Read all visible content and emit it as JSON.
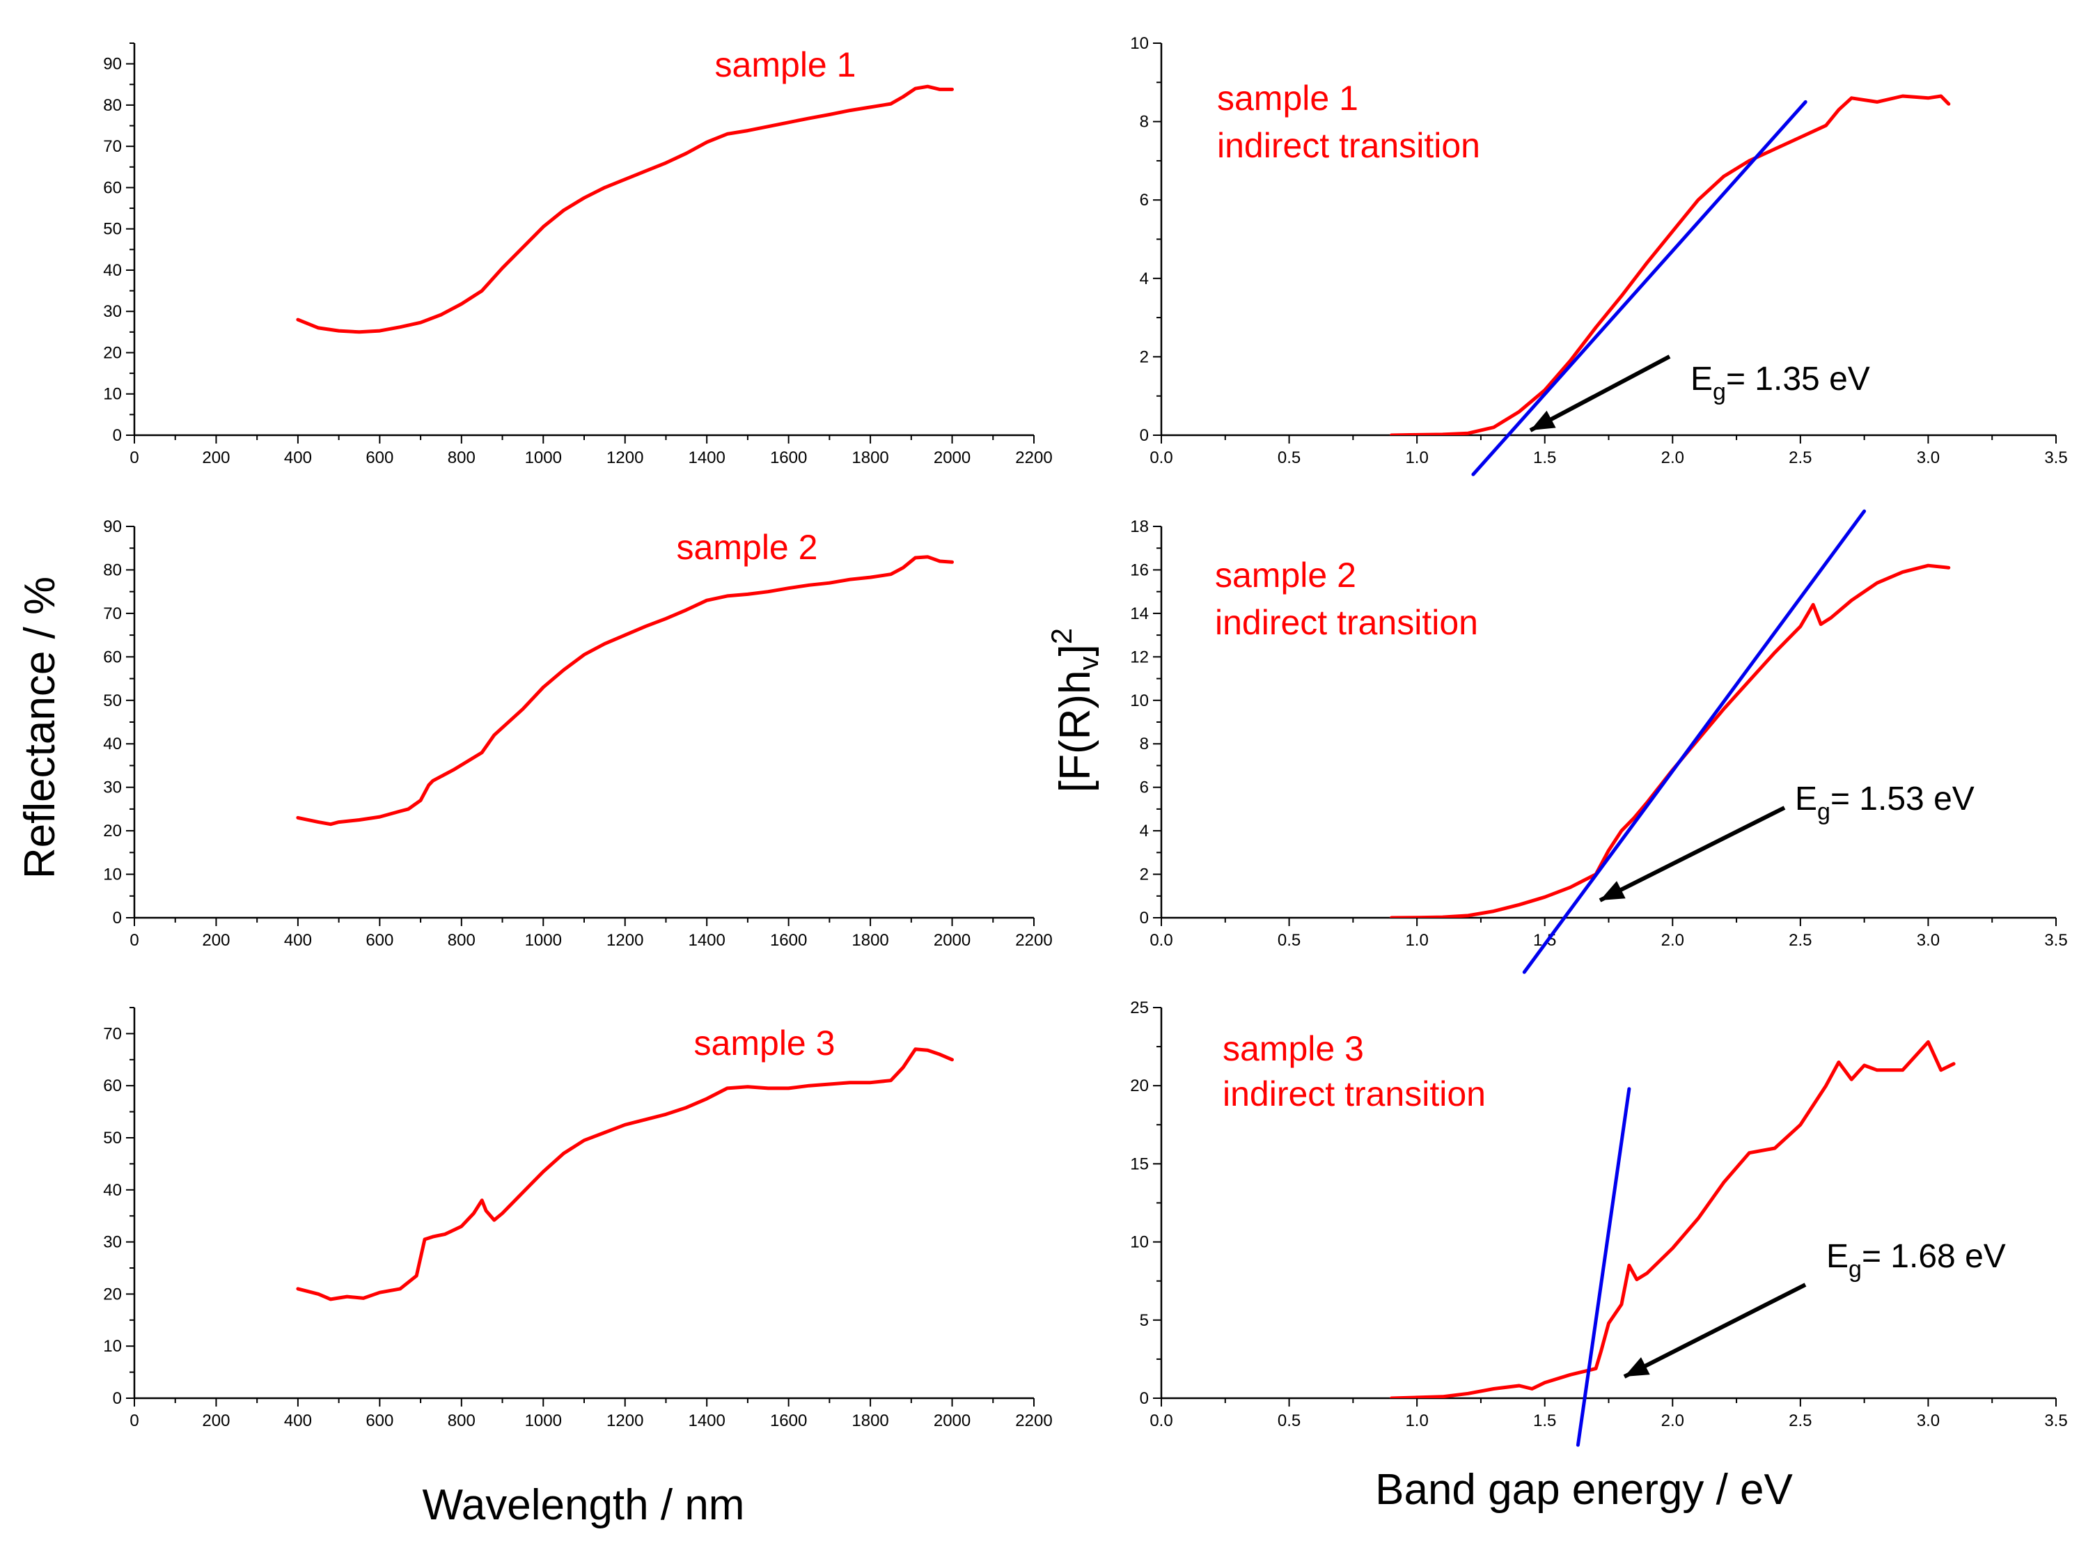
{
  "colors": {
    "data": "#ff0000",
    "fit": "#0000ee",
    "label": "#ff0000",
    "arrow": "#000000",
    "axis": "#000000"
  },
  "axis_titles": {
    "left_y": "Reflectance / %",
    "left_x": "Wavelength / nm",
    "right_y_main": "[F(R)h",
    "right_y_sub": "v",
    "right_y_end": "]",
    "right_y_sup": "2",
    "right_x": "Band gap energy / eV"
  },
  "chart_data": [
    {
      "id": "refl-1",
      "type": "line",
      "title": "sample 1",
      "xlabel": "Wavelength / nm",
      "ylabel": "Reflectance / %",
      "xlim": [
        0,
        2200
      ],
      "ylim": [
        0,
        95
      ],
      "xticks": [
        0,
        200,
        400,
        600,
        800,
        1000,
        1200,
        1400,
        1600,
        1800,
        2000,
        2200
      ],
      "yticks": [
        0,
        10,
        20,
        30,
        40,
        50,
        60,
        70,
        80,
        90
      ],
      "series": [
        {
          "name": "sample 1",
          "x": [
            400,
            450,
            500,
            550,
            600,
            650,
            700,
            750,
            800,
            850,
            900,
            950,
            1000,
            1050,
            1100,
            1150,
            1200,
            1250,
            1300,
            1350,
            1400,
            1450,
            1500,
            1550,
            1600,
            1650,
            1700,
            1750,
            1800,
            1850,
            1880,
            1910,
            1940,
            1970,
            2000
          ],
          "y": [
            28,
            26,
            25.3,
            25,
            25.3,
            26.2,
            27.3,
            29.2,
            31.8,
            35,
            40.5,
            45.5,
            50.5,
            54.5,
            57.5,
            60,
            62,
            64,
            66,
            68.3,
            71,
            73,
            73.8,
            74.8,
            75.8,
            76.8,
            77.7,
            78.7,
            79.5,
            80.3,
            82,
            84,
            84.5,
            83.8,
            83.8
          ]
        }
      ]
    },
    {
      "id": "refl-2",
      "type": "line",
      "title": "sample 2",
      "xlabel": "Wavelength / nm",
      "ylabel": "Reflectance / %",
      "xlim": [
        0,
        2200
      ],
      "ylim": [
        0,
        90
      ],
      "xticks": [
        0,
        200,
        400,
        600,
        800,
        1000,
        1200,
        1400,
        1600,
        1800,
        2000,
        2200
      ],
      "yticks": [
        0,
        10,
        20,
        30,
        40,
        50,
        60,
        70,
        80,
        90
      ],
      "series": [
        {
          "name": "sample 2",
          "x": [
            400,
            450,
            480,
            500,
            550,
            600,
            650,
            670,
            700,
            720,
            730,
            780,
            850,
            880,
            950,
            1000,
            1050,
            1100,
            1150,
            1200,
            1250,
            1300,
            1350,
            1400,
            1450,
            1500,
            1550,
            1600,
            1650,
            1700,
            1750,
            1800,
            1850,
            1880,
            1910,
            1940,
            1970,
            2000
          ],
          "y": [
            23,
            22,
            21.5,
            22,
            22.5,
            23.2,
            24.5,
            25,
            27,
            30.5,
            31.5,
            34,
            38,
            42,
            48,
            53,
            57,
            60.5,
            63,
            65,
            67,
            68.8,
            70.8,
            73,
            74,
            74.4,
            75,
            75.8,
            76.5,
            77,
            77.8,
            78.3,
            79,
            80.5,
            82.8,
            83,
            82,
            81.8
          ]
        }
      ]
    },
    {
      "id": "refl-3",
      "type": "line",
      "title": "sample 3",
      "xlabel": "Wavelength / nm",
      "ylabel": "Reflectance / %",
      "xlim": [
        0,
        2200
      ],
      "ylim": [
        0,
        75
      ],
      "xticks": [
        0,
        200,
        400,
        600,
        800,
        1000,
        1200,
        1400,
        1600,
        1800,
        2000,
        2200
      ],
      "yticks": [
        0,
        10,
        20,
        30,
        40,
        50,
        60,
        70
      ],
      "series": [
        {
          "name": "sample 3",
          "x": [
            400,
            450,
            480,
            520,
            560,
            600,
            650,
            690,
            710,
            730,
            760,
            800,
            830,
            850,
            860,
            880,
            900,
            950,
            1000,
            1050,
            1100,
            1150,
            1200,
            1250,
            1300,
            1350,
            1400,
            1450,
            1500,
            1550,
            1600,
            1650,
            1700,
            1750,
            1800,
            1850,
            1880,
            1910,
            1940,
            1970,
            2000
          ],
          "y": [
            21,
            20,
            19,
            19.5,
            19.2,
            20.3,
            21,
            23.5,
            30.5,
            31,
            31.5,
            33,
            35.5,
            38,
            36,
            34.2,
            35.5,
            39.5,
            43.5,
            47,
            49.5,
            51,
            52.5,
            53.5,
            54.5,
            55.8,
            57.5,
            59.5,
            59.8,
            59.5,
            59.5,
            60,
            60.3,
            60.6,
            60.6,
            61,
            63.5,
            67,
            66.8,
            66,
            65
          ]
        }
      ]
    },
    {
      "id": "tauc-1",
      "type": "line",
      "title": "sample 1",
      "subtitle": "indirect transition",
      "annotation": {
        "main": "E",
        "sub": "g",
        "rest": "= 1.35 eV",
        "energy": 1.35
      },
      "xlabel": "Band gap energy / eV",
      "ylabel": "[F(R)hv]^2",
      "xlim": [
        0,
        3.5
      ],
      "ylim": [
        0,
        10
      ],
      "xticks": [
        0.0,
        0.5,
        1.0,
        1.5,
        2.0,
        2.5,
        3.0,
        3.5
      ],
      "yticks": [
        0,
        2,
        4,
        6,
        8,
        10
      ],
      "series": [
        {
          "name": "data",
          "x": [
            0.9,
            1.0,
            1.1,
            1.2,
            1.3,
            1.4,
            1.5,
            1.6,
            1.7,
            1.8,
            1.9,
            2.0,
            2.1,
            2.2,
            2.3,
            2.4,
            2.5,
            2.6,
            2.65,
            2.7,
            2.8,
            2.9,
            3.0,
            3.05,
            3.08
          ],
          "y": [
            0,
            0.01,
            0.02,
            0.05,
            0.2,
            0.6,
            1.15,
            1.9,
            2.75,
            3.55,
            4.4,
            5.2,
            6.0,
            6.6,
            7.0,
            7.3,
            7.6,
            7.9,
            8.3,
            8.6,
            8.5,
            8.65,
            8.6,
            8.65,
            8.45
          ]
        },
        {
          "name": "linear fit",
          "x": [
            1.22,
            2.52
          ],
          "y": [
            -1.0,
            8.5
          ]
        }
      ]
    },
    {
      "id": "tauc-2",
      "type": "line",
      "title": "sample 2",
      "subtitle": "indirect transition",
      "annotation": {
        "main": "E",
        "sub": "g",
        "rest": "= 1.53 eV",
        "energy": 1.53
      },
      "xlabel": "Band gap energy / eV",
      "ylabel": "[F(R)hv]^2",
      "xlim": [
        0,
        3.5
      ],
      "ylim": [
        0,
        18
      ],
      "xticks": [
        0.0,
        0.5,
        1.0,
        1.5,
        2.0,
        2.5,
        3.0,
        3.5
      ],
      "yticks": [
        0,
        2,
        4,
        6,
        8,
        10,
        12,
        14,
        16,
        18
      ],
      "series": [
        {
          "name": "data",
          "x": [
            0.9,
            1.0,
            1.1,
            1.2,
            1.3,
            1.4,
            1.5,
            1.6,
            1.65,
            1.7,
            1.75,
            1.8,
            1.85,
            1.9,
            2.0,
            2.1,
            2.2,
            2.3,
            2.4,
            2.5,
            2.55,
            2.58,
            2.62,
            2.7,
            2.8,
            2.9,
            3.0,
            3.08
          ],
          "y": [
            0,
            0.01,
            0.03,
            0.1,
            0.3,
            0.6,
            0.95,
            1.4,
            1.7,
            2.0,
            3.1,
            4.0,
            4.6,
            5.3,
            6.8,
            8.2,
            9.6,
            10.9,
            12.2,
            13.4,
            14.4,
            13.5,
            13.8,
            14.6,
            15.4,
            15.9,
            16.2,
            16.1
          ]
        },
        {
          "name": "linear fit",
          "x": [
            1.42,
            2.75
          ],
          "y": [
            -2.5,
            18.7
          ]
        }
      ]
    },
    {
      "id": "tauc-3",
      "type": "line",
      "title": "sample 3",
      "subtitle": "indirect transition",
      "annotation": {
        "main": "E",
        "sub": "g",
        "rest": "= 1.68 eV",
        "energy": 1.68
      },
      "xlabel": "Band gap energy / eV",
      "ylabel": "[F(R)hv]^2",
      "xlim": [
        0,
        3.5
      ],
      "ylim": [
        0,
        25
      ],
      "xticks": [
        0.0,
        0.5,
        1.0,
        1.5,
        2.0,
        2.5,
        3.0,
        3.5
      ],
      "yticks": [
        0,
        5,
        10,
        15,
        20,
        25
      ],
      "series": [
        {
          "name": "data",
          "x": [
            0.9,
            1.0,
            1.1,
            1.2,
            1.3,
            1.4,
            1.45,
            1.5,
            1.6,
            1.7,
            1.72,
            1.75,
            1.8,
            1.83,
            1.86,
            1.9,
            2.0,
            2.1,
            2.2,
            2.3,
            2.4,
            2.5,
            2.6,
            2.65,
            2.7,
            2.75,
            2.8,
            2.9,
            3.0,
            3.05,
            3.1
          ],
          "y": [
            0,
            0.05,
            0.1,
            0.3,
            0.6,
            0.8,
            0.6,
            1.0,
            1.5,
            1.9,
            3.0,
            4.8,
            6.0,
            8.5,
            7.6,
            8.0,
            9.6,
            11.5,
            13.8,
            15.7,
            16.0,
            17.5,
            20.0,
            21.5,
            20.4,
            21.3,
            21.0,
            21.0,
            22.8,
            21.0,
            21.4
          ]
        },
        {
          "name": "linear fit",
          "x": [
            1.63,
            1.83
          ],
          "y": [
            -3.0,
            19.8
          ]
        }
      ]
    }
  ]
}
